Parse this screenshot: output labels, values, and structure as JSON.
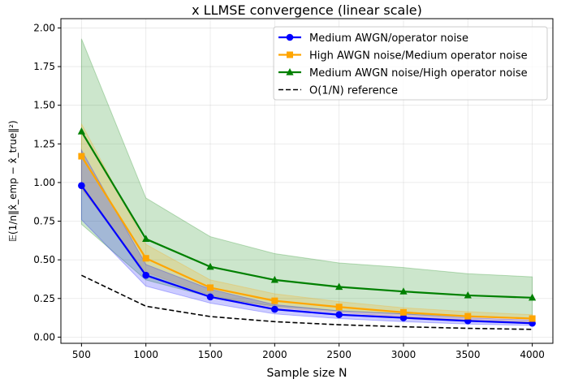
{
  "chart_data": {
    "type": "line",
    "title": "x LLMSE convergence (linear scale)",
    "xlabel": "Sample size N",
    "ylabel": "𝔼(1/n‖x̂_emp − x̂_true‖²)",
    "xlim": [
      340,
      4160
    ],
    "ylim": [
      -0.04,
      2.06
    ],
    "x": [
      500,
      1000,
      1500,
      2000,
      2500,
      3000,
      3500,
      4000
    ],
    "x_ticks": [
      "500",
      "1000",
      "1500",
      "2000",
      "2500",
      "3000",
      "3500",
      "4000"
    ],
    "y_ticks": [
      "0.00",
      "0.25",
      "0.50",
      "0.75",
      "1.00",
      "1.25",
      "1.50",
      "1.75",
      "2.00"
    ],
    "grid": true,
    "legend_position": "top-right",
    "series": [
      {
        "name": "Medium AWGN/operator noise",
        "color": "#0000ff",
        "marker": "circle",
        "style": "solid",
        "values": [
          0.98,
          0.4,
          0.26,
          0.18,
          0.145,
          0.125,
          0.105,
          0.09
        ],
        "band_lower": [
          0.76,
          0.33,
          0.22,
          0.15,
          0.12,
          0.1,
          0.085,
          0.075
        ],
        "band_upper": [
          1.21,
          0.47,
          0.31,
          0.21,
          0.17,
          0.15,
          0.125,
          0.11
        ]
      },
      {
        "name": "High AWGN noise/Medium operator noise",
        "color": "#ffa500",
        "marker": "square",
        "style": "solid",
        "values": [
          1.17,
          0.51,
          0.32,
          0.235,
          0.195,
          0.16,
          0.135,
          0.12
        ],
        "band_lower": [
          0.96,
          0.42,
          0.27,
          0.19,
          0.16,
          0.13,
          0.11,
          0.095
        ],
        "band_upper": [
          1.38,
          0.6,
          0.37,
          0.28,
          0.23,
          0.19,
          0.165,
          0.145
        ]
      },
      {
        "name": "Medium AWGN noise/High operator noise",
        "color": "#008000",
        "marker": "triangle",
        "style": "solid",
        "values": [
          1.33,
          0.635,
          0.455,
          0.37,
          0.325,
          0.295,
          0.27,
          0.255
        ],
        "band_lower": [
          0.73,
          0.37,
          0.26,
          0.2,
          0.17,
          0.15,
          0.13,
          0.12
        ],
        "band_upper": [
          1.93,
          0.9,
          0.65,
          0.54,
          0.48,
          0.45,
          0.41,
          0.39
        ]
      },
      {
        "name": "O(1/N) reference",
        "color": "#000000",
        "marker": "none",
        "style": "dashed",
        "values": [
          0.4,
          0.2,
          0.133,
          0.1,
          0.08,
          0.067,
          0.057,
          0.05
        ]
      }
    ]
  }
}
